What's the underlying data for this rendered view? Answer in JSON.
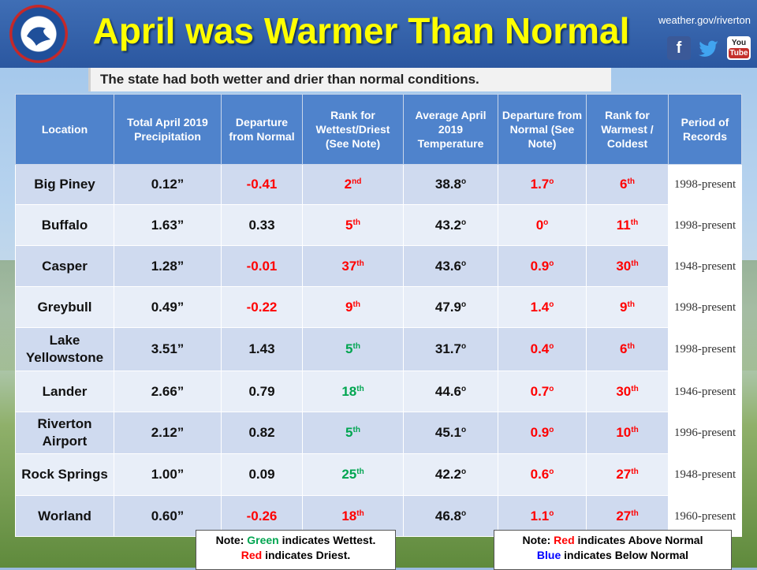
{
  "header": {
    "title": "April was Warmer Than Normal",
    "site": "weather.gov/riverton",
    "social": {
      "facebook": "f",
      "youtube_top": "You",
      "youtube_bottom": "Tube"
    }
  },
  "subtitle": "The state had both wetter and drier than normal conditions.",
  "colors": {
    "green": "#00a550",
    "red": "#ff0000",
    "blue": "#0000ff",
    "header": "#4f83cc",
    "title": "#ffff00"
  },
  "table": {
    "headers": [
      "Location",
      "Total April 2019 Precipitation",
      "Departure from Normal",
      "Rank for Wettest/Driest (See Note)",
      "Average April 2019 Temperature",
      "Departure from Normal (See Note)",
      "Rank for Warmest / Coldest",
      "Period of Records"
    ],
    "rows": [
      {
        "loc": "Big Piney",
        "precip": "0.12”",
        "dep": "-0.41",
        "dep_color": "red",
        "rank_n": "2",
        "rank_s": "nd",
        "rank_color": "red",
        "temp": "38.8",
        "tdep": "1.7",
        "trank_n": "6",
        "trank_s": "th",
        "period": "1998-present"
      },
      {
        "loc": "Buffalo",
        "precip": "1.63”",
        "dep": "0.33",
        "dep_color": "black",
        "rank_n": "5",
        "rank_s": "th",
        "rank_color": "red",
        "temp": "43.2",
        "tdep": "0",
        "trank_n": "11",
        "trank_s": "th",
        "period": "1998-present"
      },
      {
        "loc": "Casper",
        "precip": "1.28”",
        "dep": "-0.01",
        "dep_color": "red",
        "rank_n": "37",
        "rank_s": "th",
        "rank_color": "red",
        "temp": "43.6",
        "tdep": "0.9",
        "trank_n": "30",
        "trank_s": "th",
        "period": "1948-present"
      },
      {
        "loc": "Greybull",
        "precip": "0.49”",
        "dep": "-0.22",
        "dep_color": "red",
        "rank_n": "9",
        "rank_s": "th",
        "rank_color": "red",
        "temp": "47.9",
        "tdep": "1.4",
        "trank_n": "9",
        "trank_s": "th",
        "period": "1998-present"
      },
      {
        "loc": "Lake Yellowstone",
        "precip": "3.51”",
        "dep": "1.43",
        "dep_color": "black",
        "rank_n": "5",
        "rank_s": "th",
        "rank_color": "green",
        "temp": "31.7",
        "tdep": "0.4",
        "trank_n": "6",
        "trank_s": "th",
        "period": "1998-present"
      },
      {
        "loc": "Lander",
        "precip": "2.66”",
        "dep": "0.79",
        "dep_color": "black",
        "rank_n": "18",
        "rank_s": "th",
        "rank_color": "green",
        "temp": "44.6",
        "tdep": "0.7",
        "trank_n": "30",
        "trank_s": "th",
        "period": "1946-present"
      },
      {
        "loc": "Riverton Airport",
        "precip": "2.12”",
        "dep": "0.82",
        "dep_color": "black",
        "rank_n": "5",
        "rank_s": "th",
        "rank_color": "green",
        "temp": "45.1",
        "tdep": "0.9",
        "trank_n": "10",
        "trank_s": "th",
        "period": "1996-present"
      },
      {
        "loc": "Rock Springs",
        "precip": "1.00”",
        "dep": "0.09",
        "dep_color": "black",
        "rank_n": "25",
        "rank_s": "th",
        "rank_color": "green",
        "temp": "42.2",
        "tdep": "0.6",
        "trank_n": "27",
        "trank_s": "th",
        "period": "1948-present"
      },
      {
        "loc": "Worland",
        "precip": "0.60”",
        "dep": "-0.26",
        "dep_color": "red",
        "rank_n": "18",
        "rank_s": "th",
        "rank_color": "red",
        "temp": "46.8",
        "tdep": "1.1",
        "trank_n": "27",
        "trank_s": "th",
        "period": "1960-present"
      }
    ],
    "degree": "o"
  },
  "notes": {
    "left": {
      "prefix": "Note: ",
      "green_word": "Green",
      "line1_rest": " indicates Wettest.",
      "red_word": "Red",
      "line2_rest": " indicates Driest."
    },
    "right": {
      "prefix": "Note: ",
      "red_word": "Red",
      "line1_rest": " indicates Above Normal",
      "blue_word": "Blue",
      "line2_rest": " indicates Below Normal"
    }
  }
}
